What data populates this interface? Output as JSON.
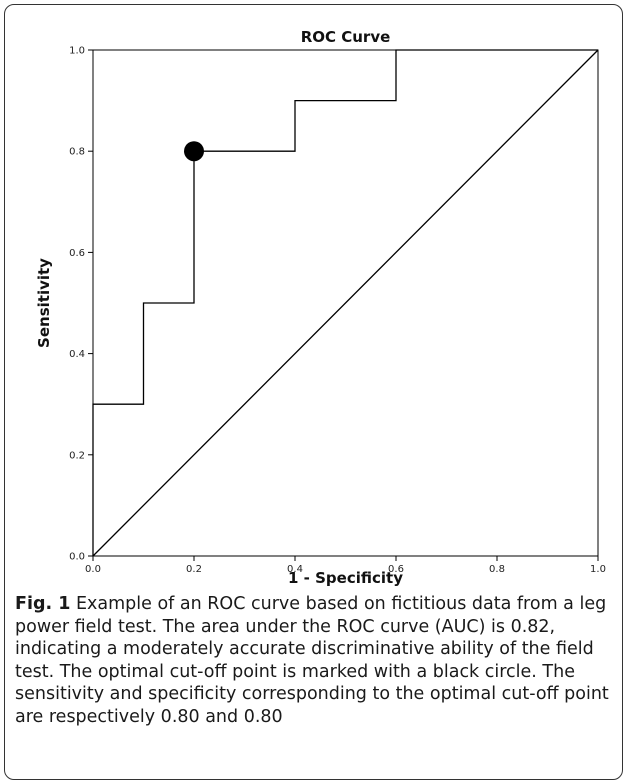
{
  "chart_data": {
    "type": "line",
    "title": "ROC Curve",
    "xlabel": "1 - Specificity",
    "ylabel": "Sensitivity",
    "xlim": [
      0.0,
      1.0
    ],
    "ylim": [
      0.0,
      1.0
    ],
    "xticks": [
      "0.0",
      "0.2",
      "0.4",
      "0.6",
      "0.8",
      "1.0"
    ],
    "yticks": [
      "0.0",
      "0.2",
      "0.4",
      "0.6",
      "0.8",
      "1.0"
    ],
    "grid": false,
    "series": [
      {
        "values_x": [
          0.0,
          0.0,
          0.1,
          0.1,
          0.2,
          0.2,
          0.4,
          0.4,
          0.6,
          0.6,
          1.0
        ],
        "values_y": [
          0.0,
          0.3,
          0.3,
          0.5,
          0.5,
          0.8,
          0.8,
          0.9,
          0.9,
          1.0,
          1.0
        ]
      },
      {
        "values_x": [
          0.0,
          1.0
        ],
        "values_y": [
          0.0,
          1.0
        ]
      }
    ],
    "highlight_point": {
      "x": 0.2,
      "y": 0.8
    },
    "colors": {
      "line": "#000000",
      "marker": "#000000",
      "background": "#ffffff"
    }
  },
  "caption": {
    "label": "Fig. 1",
    "text": "Example of an ROC curve based on fictitious data from a leg power field test. The area under the ROC curve (AUC) is 0.82, indicating a moderately accurate discriminative ability of the field test. The optimal cut-off point is marked with a black circle. The sensitivity and specificity corresponding to the optimal cut-off point are respectively 0.80 and 0.80"
  }
}
